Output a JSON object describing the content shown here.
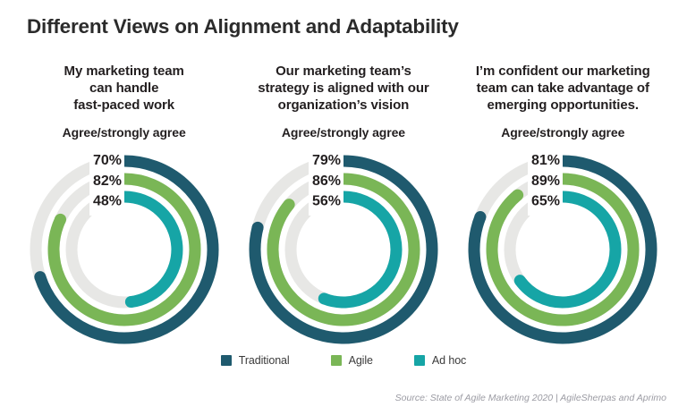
{
  "title": "Different Views on Alignment and Adaptability",
  "source": "Source: State of Agile Marketing 2020 | AgileSherpas and Aprimo",
  "chart_data": {
    "type": "donut-multi",
    "unit": "%",
    "legend_position": "bottom",
    "track_color": "#E7E7E5",
    "label_color": "#231f20",
    "series": [
      {
        "name": "Traditional",
        "color": "#1F5A6E"
      },
      {
        "name": "Agile",
        "color": "#7AB656"
      },
      {
        "name": "Ad hoc",
        "color": "#16A5A6"
      }
    ],
    "charts": [
      {
        "title": "My marketing team\ncan handle\nfast-paced work",
        "subtitle": "Agree/strongly agree",
        "values": [
          70,
          82,
          48
        ]
      },
      {
        "title": "Our marketing team’s\nstrategy is aligned with our\norganization’s vision",
        "subtitle": "Agree/strongly agree",
        "values": [
          79,
          86,
          56
        ]
      },
      {
        "title": "I’m confident our marketing\nteam can take advantage of\nemerging opportunities.",
        "subtitle": "Agree/strongly agree",
        "values": [
          81,
          89,
          65
        ]
      }
    ]
  }
}
